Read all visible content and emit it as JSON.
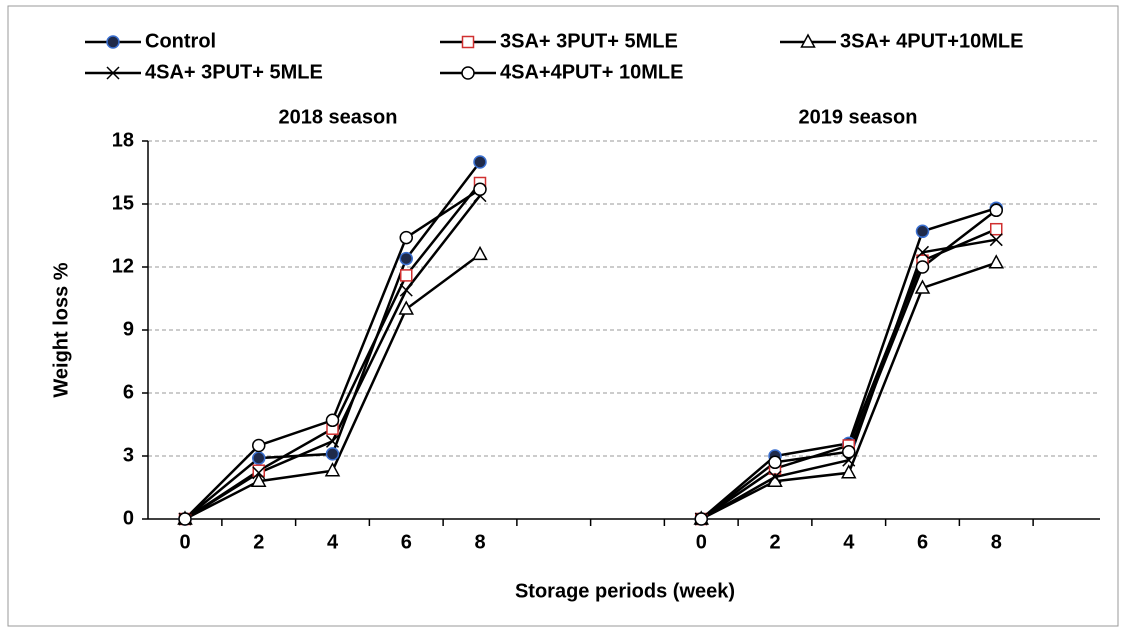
{
  "chart_data": {
    "type": "line",
    "categories": [
      "0",
      "2",
      "4",
      "6",
      "8",
      null,
      null,
      "0",
      "2",
      "4",
      "6",
      "8"
    ],
    "annotations": [
      "2018 season",
      "2019 season"
    ],
    "y_label": "Weight loss %",
    "x_label": "Storage periods (week)",
    "ylim": [
      0,
      18
    ],
    "yticks": [
      0,
      3,
      6,
      9,
      12,
      15,
      18
    ],
    "grid": true,
    "line_color": "#000000",
    "series": [
      {
        "name": "Control",
        "marker": "circle-filled",
        "color": "#1f2a4a",
        "values": [
          0,
          2.9,
          3.1,
          12.4,
          17.0,
          null,
          null,
          0,
          3.0,
          3.6,
          13.7,
          14.8
        ]
      },
      {
        "name": "3SA+ 3PUT+ 5MLE",
        "marker": "square",
        "color": "#d03030",
        "values": [
          0,
          2.3,
          4.3,
          11.6,
          16.0,
          null,
          null,
          0,
          2.4,
          3.5,
          12.3,
          13.8
        ]
      },
      {
        "name": "3SA+ 4PUT+10MLE",
        "marker": "triangle",
        "color": "#000000",
        "values": [
          0,
          1.8,
          2.3,
          10.0,
          12.6,
          null,
          null,
          0,
          1.8,
          2.2,
          11.0,
          12.2
        ]
      },
      {
        "name": "4SA+ 3PUT+ 5MLE",
        "marker": "x",
        "color": "#000000",
        "values": [
          0,
          2.2,
          3.7,
          10.9,
          15.4,
          null,
          null,
          0,
          2.0,
          2.8,
          12.7,
          13.3
        ]
      },
      {
        "name": "4SA+4PUT+ 10MLE",
        "marker": "circle",
        "color": "#000000",
        "values": [
          0,
          3.5,
          4.7,
          13.4,
          15.7,
          null,
          null,
          0,
          2.7,
          3.2,
          12.0,
          14.7
        ]
      }
    ]
  }
}
